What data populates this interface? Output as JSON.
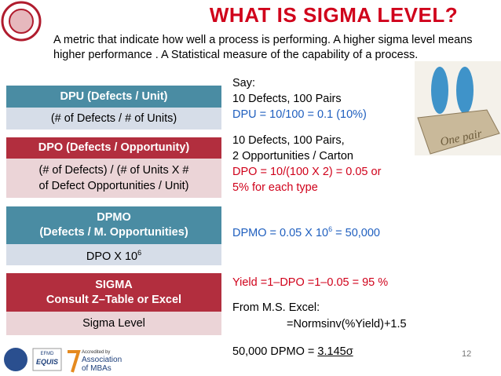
{
  "title": "WHAT IS SIGMA LEVEL?",
  "intro": "A metric that indicate how well a process is performing. A higher sigma level means higher performance . A Statistical measure of the capability of a process.",
  "boxes": [
    {
      "header": [
        "DPU (Defects / Unit)"
      ],
      "body": [
        "(# of Defects / # of Units)"
      ]
    },
    {
      "header": [
        "DPO (Defects / Opportunity)"
      ],
      "body": [
        "(# of Defects) / (# of Units X #",
        "of Defect Opportunities / Unit)"
      ]
    },
    {
      "header": [
        "DPMO",
        "(Defects / M. Opportunities)"
      ],
      "body": [
        "DPO X 10",
        "6"
      ]
    },
    {
      "header": [
        "SIGMA",
        "Consult Z–Table or Excel"
      ],
      "body": [
        "Sigma Level"
      ]
    }
  ],
  "examples": {
    "dpu": [
      "Say:",
      "10 Defects, 100 Pairs",
      "DPU = 10/100 = 0.1 (10%)"
    ],
    "dpo": [
      "10 Defects, 100 Pairs,",
      "2 Opportunities / Carton",
      "DPO  =  10/(100  X  2)  =  0.05  or",
      "5% for each type"
    ],
    "dpmo": [
      "DPMO = 0.05 X 10",
      "6",
      " = 50,000"
    ],
    "sigma": [
      "Yield =1–DPO =1–0.05 = 95 %",
      "From M.S. Excel:",
      "=Normsinv(%Yield)+1.5",
      "50,000 DPMO = ",
      "3.145σ"
    ]
  },
  "image_caption": "One pair",
  "logos": [
    "EFMD",
    "EQUIS",
    "Accredited by",
    "Association",
    "of MBAs"
  ],
  "page_number": "12"
}
